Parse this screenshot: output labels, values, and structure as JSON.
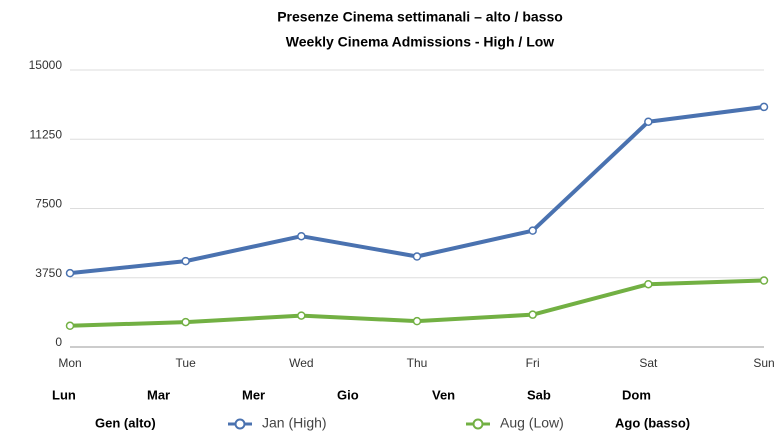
{
  "chart_data": {
    "type": "line",
    "title": "Presenze Cinema settimanali – alto / basso",
    "subtitle": "Weekly Cinema Admissions - High / Low",
    "categories": [
      "Mon",
      "Tue",
      "Wed",
      "Thu",
      "Fri",
      "Sat",
      "Sun"
    ],
    "secondary_categories": [
      "Lun",
      "Mar",
      "Mer",
      "Gio",
      "Ven",
      "Sab",
      "Dom"
    ],
    "series": [
      {
        "name": "Jan (High)",
        "alt_name": "Gen (alto)",
        "color": "#4a72b0",
        "values": [
          4000,
          4650,
          6000,
          4900,
          6300,
          12200,
          13000
        ]
      },
      {
        "name": "Aug (Low)",
        "alt_name": "Ago (basso)",
        "color": "#72b043",
        "values": [
          1150,
          1350,
          1700,
          1400,
          1750,
          3400,
          3600
        ]
      }
    ],
    "ylim": [
      0,
      15000
    ],
    "yticks": [
      0,
      3750,
      7500,
      11250,
      15000
    ],
    "grid": true
  }
}
